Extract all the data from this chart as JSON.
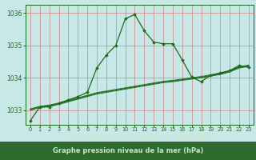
{
  "title": "Graphe pression niveau de la mer (hPa)",
  "plot_bg_color": "#c8e8e8",
  "fig_bg_color": "#c8e8e8",
  "label_bg_color": "#2d6e2d",
  "line_color": "#1a6b1a",
  "grid_color_v": "#d08080",
  "grid_color_h": "#d08080",
  "tick_label_color": "#1a6b1a",
  "xlabel_color": "#c8e8c8",
  "xlim": [
    -0.5,
    23.5
  ],
  "ylim": [
    1032.55,
    1036.25
  ],
  "yticks": [
    1033,
    1034,
    1035,
    1036
  ],
  "xticks": [
    0,
    1,
    2,
    3,
    4,
    5,
    6,
    7,
    8,
    9,
    10,
    11,
    12,
    13,
    14,
    15,
    16,
    17,
    18,
    19,
    20,
    21,
    22,
    23
  ],
  "main_series": [
    1032.68,
    1033.1,
    1033.1,
    1033.22,
    1033.32,
    1033.42,
    1033.55,
    1034.3,
    1034.7,
    1035.0,
    1035.82,
    1035.95,
    1035.45,
    1035.1,
    1035.05,
    1035.05,
    1034.55,
    1034.02,
    1033.88,
    1034.08,
    1034.15,
    1034.22,
    1034.38,
    1034.32
  ],
  "flat_series": [
    [
      1033.0,
      1033.08,
      1033.12,
      1033.18,
      1033.26,
      1033.34,
      1033.42,
      1033.5,
      1033.55,
      1033.6,
      1033.65,
      1033.7,
      1033.75,
      1033.8,
      1033.85,
      1033.88,
      1033.92,
      1033.96,
      1034.0,
      1034.05,
      1034.1,
      1034.18,
      1034.3,
      1034.35
    ],
    [
      1033.02,
      1033.1,
      1033.14,
      1033.2,
      1033.28,
      1033.36,
      1033.44,
      1033.52,
      1033.57,
      1033.62,
      1033.67,
      1033.72,
      1033.77,
      1033.82,
      1033.87,
      1033.9,
      1033.94,
      1033.98,
      1034.02,
      1034.07,
      1034.12,
      1034.2,
      1034.32,
      1034.37
    ],
    [
      1033.04,
      1033.12,
      1033.16,
      1033.22,
      1033.3,
      1033.38,
      1033.46,
      1033.54,
      1033.59,
      1033.64,
      1033.69,
      1033.74,
      1033.79,
      1033.84,
      1033.89,
      1033.92,
      1033.96,
      1034.0,
      1034.04,
      1034.09,
      1034.14,
      1034.22,
      1034.34,
      1034.39
    ]
  ]
}
